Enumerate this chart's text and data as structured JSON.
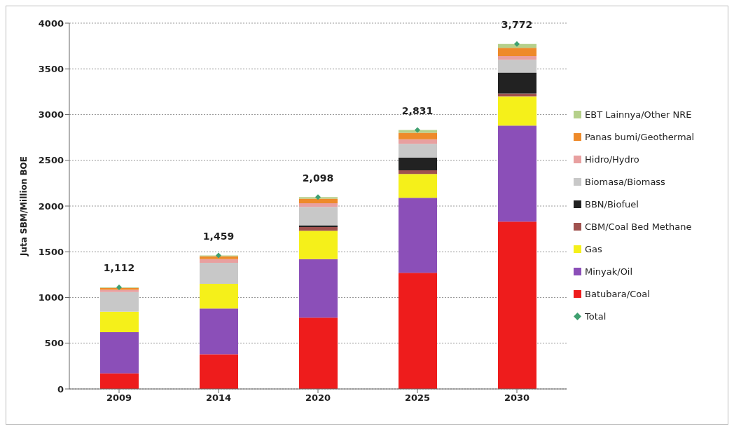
{
  "chart_data": {
    "type": "bar",
    "stacked": true,
    "ylabel": "Juta SBM/Million BOE",
    "categories": [
      "2009",
      "2014",
      "2020",
      "2025",
      "2030"
    ],
    "ylim": [
      0,
      4000
    ],
    "yticks": [
      0,
      500,
      1000,
      1500,
      2000,
      2500,
      3000,
      3500,
      4000
    ],
    "grid": "y",
    "legend": "right",
    "series": [
      {
        "name": "Batubara/Coal",
        "color": "#ee1c1c",
        "values": [
          170,
          380,
          780,
          1270,
          1830
        ]
      },
      {
        "name": "Minyak/Oil",
        "color": "#8b4fb8",
        "values": [
          450,
          500,
          640,
          820,
          1050
        ]
      },
      {
        "name": "Gas",
        "color": "#f5f01a",
        "values": [
          225,
          270,
          310,
          260,
          320
        ]
      },
      {
        "name": "CBM/Coal Bed Methane",
        "color": "#a0524f",
        "values": [
          0,
          0,
          40,
          40,
          30
        ]
      },
      {
        "name": "BBN/Biofuel",
        "color": "#222222",
        "values": [
          0,
          0,
          20,
          140,
          230
        ]
      },
      {
        "name": "Biomasa/Biomass",
        "color": "#c8c8c8",
        "values": [
          215,
          230,
          200,
          150,
          140
        ]
      },
      {
        "name": "Hidro/Hydro",
        "color": "#e8a0a0",
        "values": [
          25,
          40,
          40,
          50,
          40
        ]
      },
      {
        "name": "Panas bumi/Geothermal",
        "color": "#ee8a2a",
        "values": [
          20,
          30,
          50,
          70,
          90
        ]
      },
      {
        "name": "EBT Lainnya/Other NRE",
        "color": "#b5d08a",
        "values": [
          7,
          9,
          18,
          31,
          42
        ]
      },
      {
        "name": "Total",
        "type": "scatter",
        "marker": "diamond",
        "color": "#3fa070",
        "values": [
          1112,
          1459,
          2098,
          2831,
          3772
        ],
        "value_labels": [
          "1,112",
          "1,459",
          "2,098",
          "2,831",
          "3,772"
        ]
      }
    ]
  }
}
